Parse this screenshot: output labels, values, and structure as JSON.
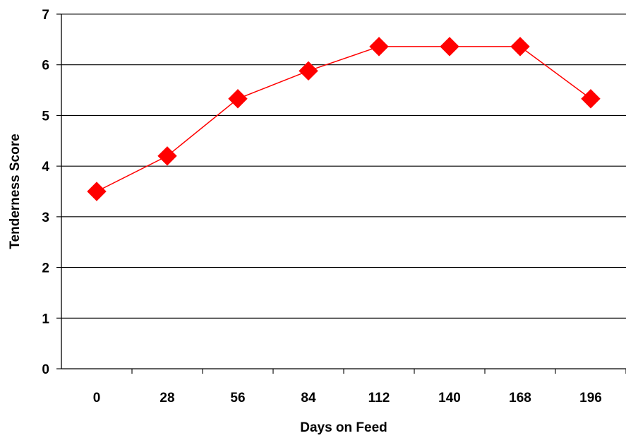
{
  "chart_data": {
    "type": "line",
    "title": "",
    "xlabel": "Days on Feed",
    "ylabel": "Tenderness Score",
    "categories": [
      "0",
      "28",
      "56",
      "84",
      "112",
      "140",
      "168",
      "196"
    ],
    "series": [
      {
        "values": [
          3.5,
          4.2,
          5.33,
          5.88,
          6.36,
          6.36,
          6.36,
          5.33
        ],
        "color": "#ff0000",
        "marker": "diamond"
      }
    ],
    "ylim": [
      0,
      7
    ],
    "yticks": [
      "0",
      "1",
      "2",
      "3",
      "4",
      "5",
      "6",
      "7"
    ],
    "grid": "horizontal",
    "legend": "none"
  }
}
